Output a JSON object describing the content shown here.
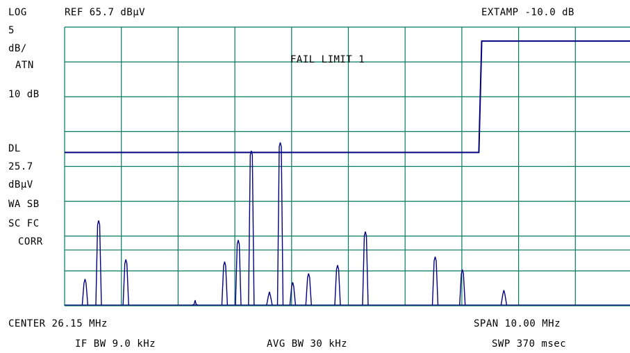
{
  "header": {
    "scale_mode": "LOG",
    "ref_level": "REF 65.7 dBµV",
    "ext_amp": "EXTAMP -10.0 dB",
    "scale_value": "5",
    "scale_unit": "dB/",
    "atten_label": "ATN",
    "atten_value": "10 dB"
  },
  "side_panel": {
    "display_line_label": "DL",
    "display_line_value": "25.7",
    "display_line_unit": "dBµV",
    "detector_modes": "WA SB",
    "coupling_modes": "SC FC",
    "correction": "CORR"
  },
  "annotation": {
    "fail_message": "FAIL LIMIT 1"
  },
  "footer": {
    "center": "CENTER 26.15 MHz",
    "span": "SPAN 10.00 MHz",
    "if_bw": "IF BW 9.0 kHz",
    "avg_bw": "AVG BW 30 kHz",
    "sweep": "SWP 370 msec"
  },
  "colors": {
    "grid": "#007a5e",
    "trace": "#000080",
    "text": "#000000",
    "background": "#ffffff"
  },
  "chart_data": {
    "type": "line",
    "x_unit": "MHz",
    "y_unit": "dBµV",
    "x_center": 26.15,
    "x_span": 10.0,
    "ylim": [
      15.7,
      65.7
    ],
    "display_line": 25.7,
    "limit_line": {
      "x": [
        21.15,
        28.45,
        28.5,
        31.15
      ],
      "y": [
        43.2,
        43.2,
        63.2,
        63.2
      ]
    },
    "trace_peaks": [
      {
        "f": 21.51,
        "a": 20.5
      },
      {
        "f": 21.75,
        "a": 31.0
      },
      {
        "f": 22.23,
        "a": 24.0
      },
      {
        "f": 23.45,
        "a": 16.7
      },
      {
        "f": 23.97,
        "a": 23.6
      },
      {
        "f": 24.21,
        "a": 27.5
      },
      {
        "f": 24.44,
        "a": 43.5
      },
      {
        "f": 24.76,
        "a": 18.2
      },
      {
        "f": 24.95,
        "a": 45.0
      },
      {
        "f": 25.17,
        "a": 19.9
      },
      {
        "f": 25.45,
        "a": 21.5
      },
      {
        "f": 25.96,
        "a": 23.0
      },
      {
        "f": 26.45,
        "a": 29.0
      },
      {
        "f": 27.68,
        "a": 24.5
      },
      {
        "f": 28.16,
        "a": 22.2
      },
      {
        "f": 28.89,
        "a": 18.5
      }
    ]
  }
}
